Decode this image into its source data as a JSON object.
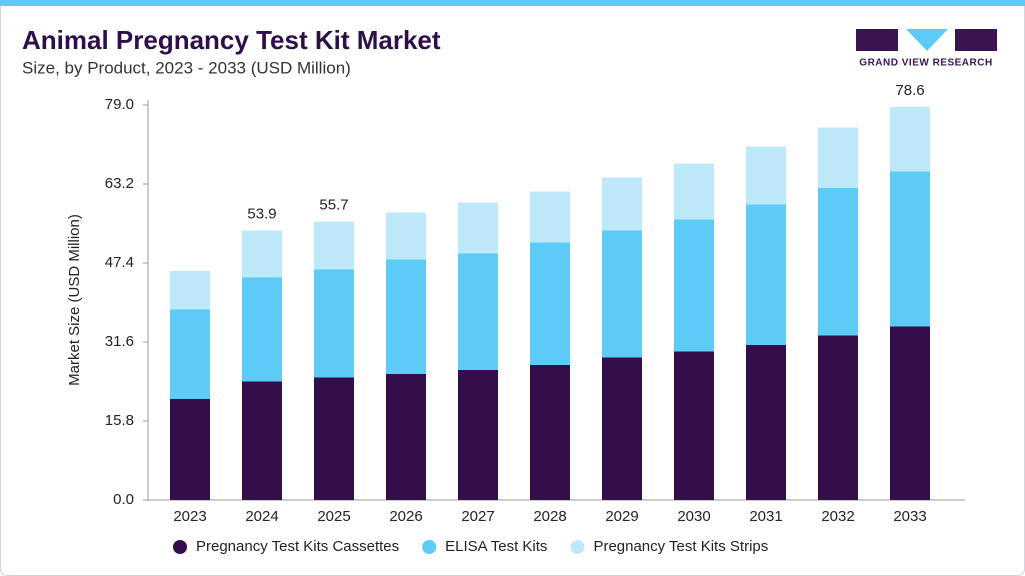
{
  "chart_data": {
    "type": "stacked-bar",
    "title": "Animal Pregnancy Test Kit Market",
    "subtitle": "Size, by Product, 2023 - 2033 (USD Million)",
    "brand": "GRAND VIEW RESEARCH",
    "y_label": "Market Size (USD Million)",
    "categories": [
      "2023",
      "2024",
      "2025",
      "2026",
      "2027",
      "2028",
      "2029",
      "2030",
      "2031",
      "2032",
      "2033"
    ],
    "series": [
      {
        "name": "Pregnancy Test Kits Cassettes",
        "color": "#330e4a",
        "values": [
          20.2,
          23.7,
          24.5,
          25.2,
          26.0,
          27.0,
          28.5,
          29.7,
          31.0,
          32.9,
          34.7
        ]
      },
      {
        "name": "ELISA Test Kits",
        "color": "#5ccbf5",
        "values": [
          17.9,
          20.8,
          21.6,
          22.9,
          23.3,
          24.5,
          25.4,
          26.4,
          28.1,
          29.5,
          31.0
        ]
      },
      {
        "name": "Pregnancy Test Kits Strips",
        "color": "#bde9fa",
        "values": [
          7.7,
          9.4,
          9.6,
          9.4,
          10.2,
          10.2,
          10.6,
          11.2,
          11.6,
          12.1,
          12.9
        ]
      }
    ],
    "totals": [
      null,
      53.9,
      55.7,
      null,
      null,
      null,
      null,
      null,
      null,
      null,
      78.6
    ],
    "ylim": [
      0,
      79
    ],
    "yticks": [
      {
        "value": 0,
        "label": "0.0"
      },
      15.8,
      31.6,
      47.4,
      63.2,
      {
        "value": 79,
        "label": "79.0"
      }
    ]
  }
}
